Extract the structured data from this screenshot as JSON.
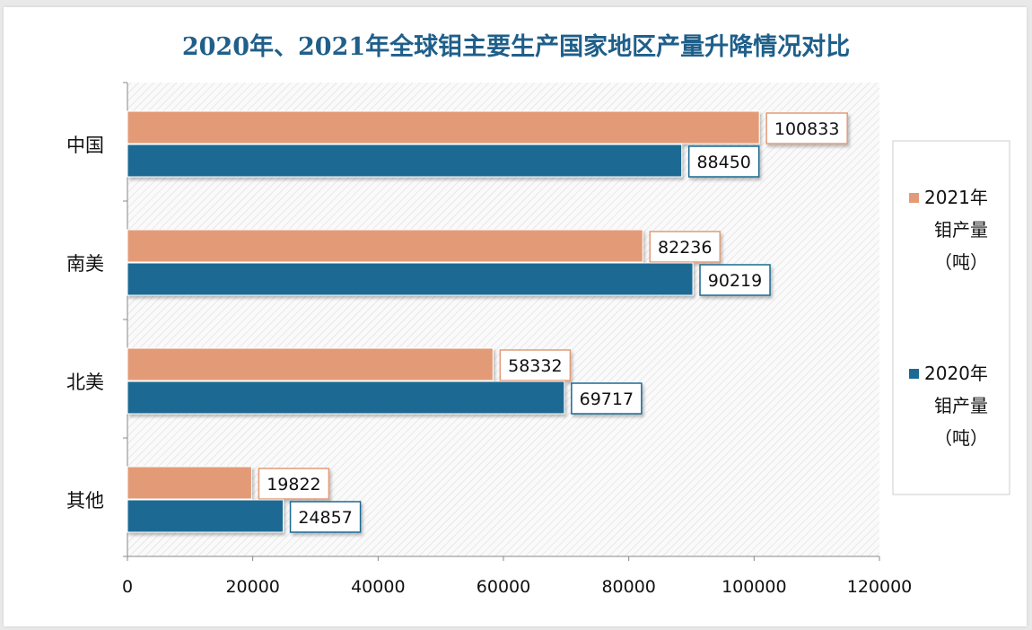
{
  "chart_data": {
    "type": "bar",
    "orientation": "horizontal",
    "title": "2020年、2021年全球钼主要生产国家地区产量升降情况对比",
    "categories": [
      "中国",
      "南美",
      "北美",
      "其他"
    ],
    "series": [
      {
        "name": "2021年钼产量（吨）",
        "legend_lines": [
          "2021年",
          "钼产量",
          "（吨）"
        ],
        "color": "#e39b77",
        "values": [
          100833,
          82236,
          58332,
          19822
        ]
      },
      {
        "name": "2020年钼产量（吨）",
        "legend_lines": [
          "2020年",
          "钼产量",
          "（吨）"
        ],
        "color": "#1b6a93",
        "values": [
          88450,
          90219,
          69717,
          24857
        ]
      }
    ],
    "xlim": [
      0,
      120000
    ],
    "xticks": [
      "0",
      "20000",
      "40000",
      "60000",
      "80000",
      "100000",
      "120000"
    ],
    "data_labels": true,
    "legend_position": "right",
    "grid": false,
    "plot_background": "hatched"
  }
}
